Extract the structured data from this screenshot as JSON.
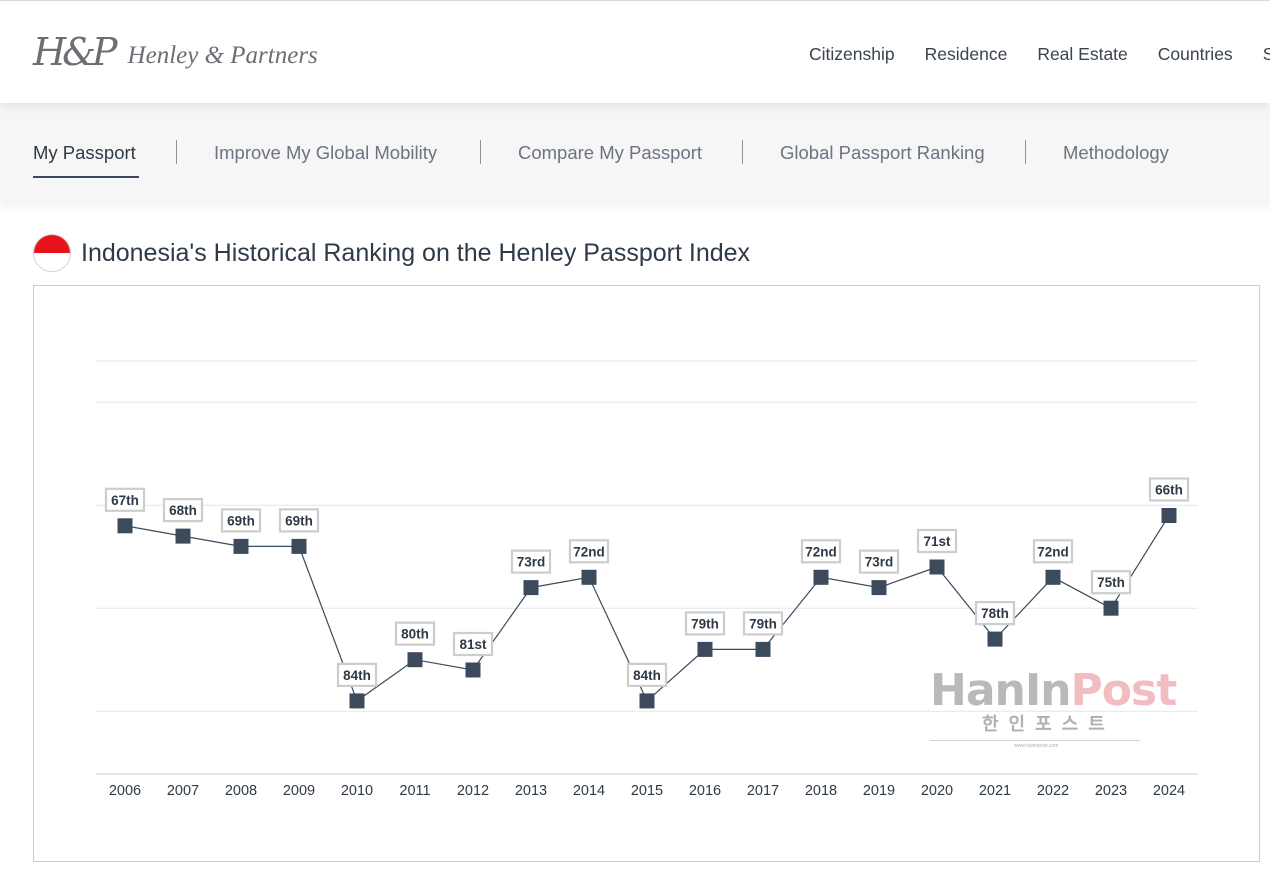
{
  "brand": {
    "mark": "H&P",
    "name": "Henley & Partners"
  },
  "main_nav": [
    "Citizenship",
    "Residence",
    "Real Estate",
    "Countries",
    "S"
  ],
  "sub_nav": {
    "items": [
      "My Passport",
      "Improve My Global Mobility",
      "Compare My Passport",
      "Global Passport Ranking",
      "Methodology"
    ],
    "active_index": 0
  },
  "page": {
    "title": "Indonesia's Historical Ranking on the Henley Passport Index",
    "flag_colors": [
      "#e8141b",
      "#ffffff"
    ]
  },
  "watermark": {
    "part1": "HanIn",
    "part2": "Post",
    "korean": "한인포스트",
    "url": "www.haninpost.com"
  },
  "colors": {
    "marker": "#3c4b5c",
    "label_border": "#cdcdcd",
    "grid": "#e4e7ec"
  },
  "chart_data": {
    "type": "line",
    "title": "",
    "xlabel": "",
    "ylabel": "",
    "categories": [
      "2006",
      "2007",
      "2008",
      "2009",
      "2010",
      "2011",
      "2012",
      "2013",
      "2014",
      "2015",
      "2016",
      "2017",
      "2018",
      "2019",
      "2020",
      "2021",
      "2022",
      "2023",
      "2024"
    ],
    "values": [
      67,
      68,
      69,
      69,
      84,
      80,
      81,
      73,
      72,
      84,
      79,
      79,
      72,
      73,
      71,
      78,
      72,
      75,
      66
    ],
    "labels": [
      "67th",
      "68th",
      "69th",
      "69th",
      "84th",
      "80th",
      "81st",
      "73rd",
      "72nd",
      "84th",
      "79th",
      "79th",
      "72nd",
      "73rd",
      "71st",
      "78th",
      "72nd",
      "75th",
      "66th"
    ],
    "y_axis": "rank (inverted, lower rank shown higher)",
    "ylim": [
      91,
      51
    ],
    "grid": true,
    "legend": false,
    "marker": "square"
  }
}
